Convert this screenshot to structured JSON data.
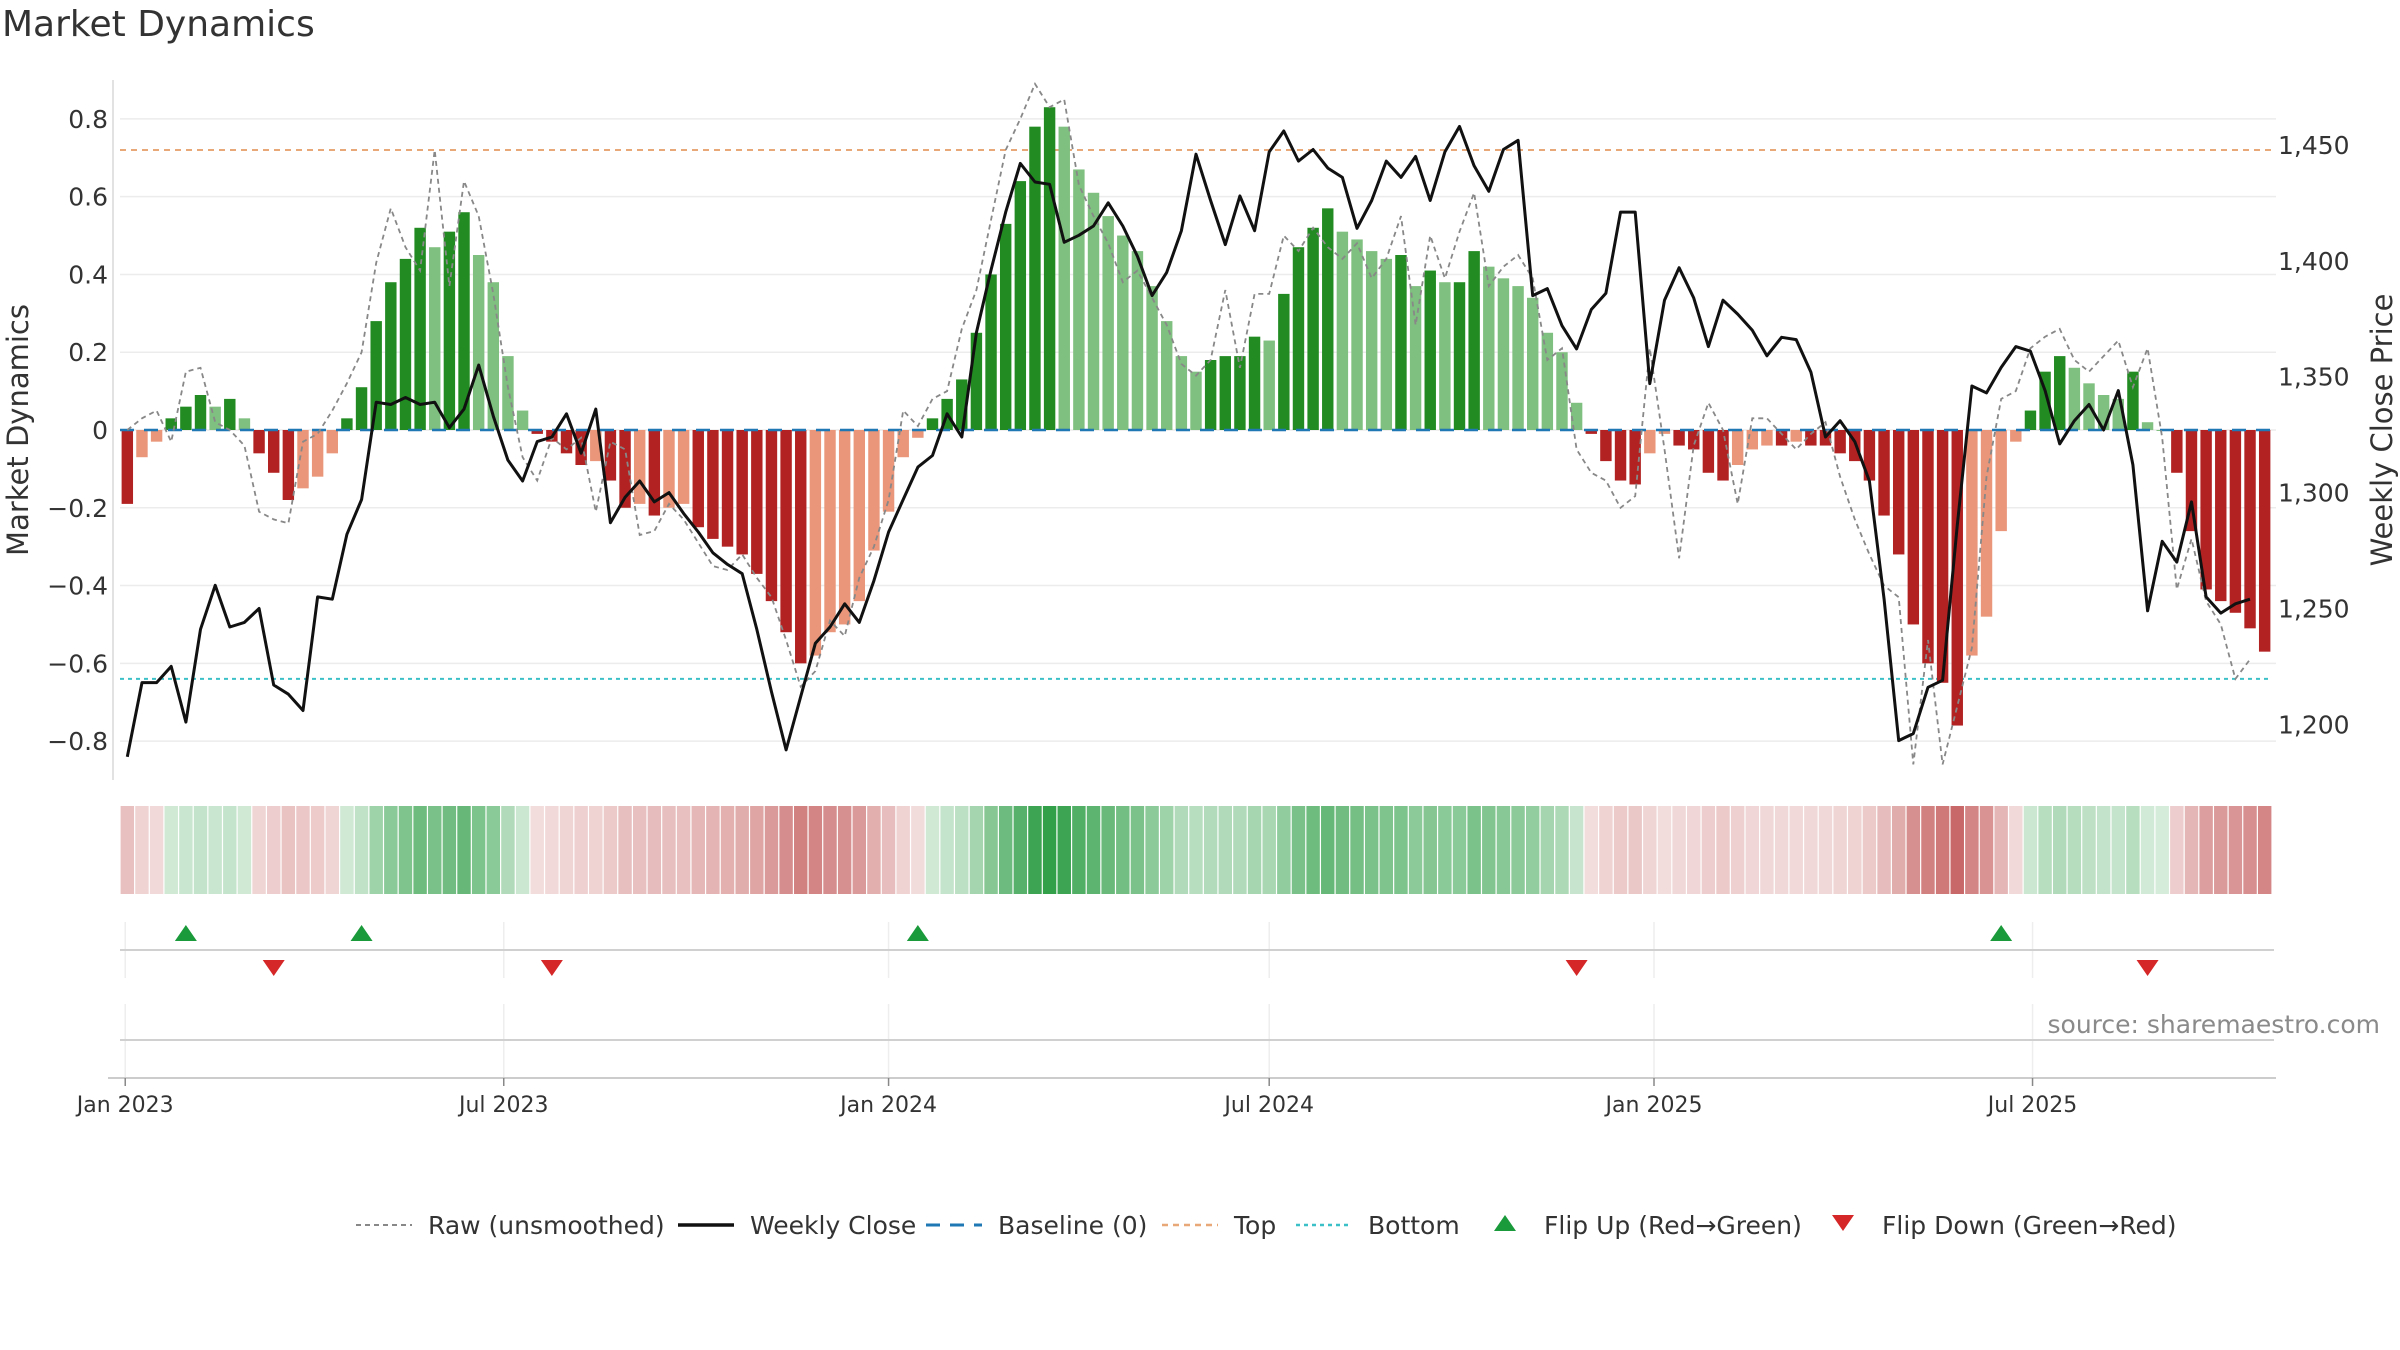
{
  "title": "Market Dynamics",
  "source": "source: sharemaestro.com",
  "colors": {
    "strong_green": "#228b22",
    "light_green": "#7fbf7f",
    "strong_red": "#b22222",
    "light_red": "#e9967a",
    "close_line": "#111111",
    "raw_line": "#888888",
    "baseline": "#1f77b4",
    "top_line": "#e8a878",
    "bottom_line": "#3cc0c8",
    "flip_up": "#1a9a3a",
    "flip_down": "#d62728"
  },
  "chart_data": {
    "type": "bar",
    "title": "Market Dynamics",
    "ylabel": "Market Dynamics",
    "y2label": "Weekly Close Price",
    "ylim": [
      -0.9,
      0.9
    ],
    "y2lim": [
      1176.0,
      1478.0
    ],
    "yticks": [
      "0.8",
      "0.6",
      "0.4",
      "0.2",
      "0",
      "−0.2",
      "−0.4",
      "−0.6",
      "−0.8"
    ],
    "y2ticks": [
      "1,450",
      "1,400",
      "1,350",
      "1,300",
      "1,250",
      "1,200"
    ],
    "xticks": [
      "Jan 2023",
      "Jul 2023",
      "Jan 2024",
      "Jul 2024",
      "Jan 2025",
      "Jul 2025"
    ],
    "x_start": "2023-01-02",
    "interval": "weekly",
    "top_level": 0.72,
    "bottom_level": -0.64,
    "grid": true,
    "legend_position": "bottom",
    "legend": [
      "Raw (unsmoothed)",
      "Weekly Close",
      "Baseline (0)",
      "Top",
      "Bottom",
      "Flip Up (Red→Green)",
      "Flip Down (Green→Red)"
    ],
    "smoothed": [
      -0.19,
      -0.07,
      -0.03,
      0.03,
      0.06,
      0.09,
      0.06,
      0.08,
      0.03,
      -0.06,
      -0.11,
      -0.18,
      -0.15,
      -0.12,
      -0.06,
      0.03,
      0.11,
      0.28,
      0.38,
      0.44,
      0.52,
      0.47,
      0.51,
      0.56,
      0.45,
      0.38,
      0.19,
      0.05,
      -0.01,
      -0.03,
      -0.06,
      -0.09,
      -0.08,
      -0.13,
      -0.2,
      -0.19,
      -0.22,
      -0.2,
      -0.19,
      -0.25,
      -0.28,
      -0.3,
      -0.32,
      -0.37,
      -0.44,
      -0.52,
      -0.6,
      -0.58,
      -0.52,
      -0.5,
      -0.44,
      -0.31,
      -0.21,
      -0.07,
      -0.02,
      0.03,
      0.08,
      0.13,
      0.25,
      0.4,
      0.53,
      0.64,
      0.78,
      0.83,
      0.78,
      0.67,
      0.61,
      0.55,
      0.5,
      0.46,
      0.37,
      0.28,
      0.19,
      0.15,
      0.18,
      0.19,
      0.19,
      0.24,
      0.23,
      0.35,
      0.47,
      0.52,
      0.57,
      0.51,
      0.49,
      0.46,
      0.44,
      0.45,
      0.37,
      0.41,
      0.38,
      0.38,
      0.46,
      0.42,
      0.39,
      0.37,
      0.34,
      0.25,
      0.2,
      0.07,
      -0.01,
      -0.08,
      -0.13,
      -0.14,
      -0.06,
      -0.01,
      -0.04,
      -0.05,
      -0.11,
      -0.13,
      -0.09,
      -0.05,
      -0.04,
      -0.04,
      -0.03,
      -0.04,
      -0.04,
      -0.06,
      -0.08,
      -0.13,
      -0.22,
      -0.32,
      -0.5,
      -0.6,
      -0.65,
      -0.76,
      -0.58,
      -0.48,
      -0.26,
      -0.03,
      0.05,
      0.15,
      0.19,
      0.16,
      0.12,
      0.09,
      0.08,
      0.15,
      0.02,
      0.0,
      -0.11,
      -0.26,
      -0.41,
      -0.44,
      -0.47,
      -0.51,
      -0.57
    ],
    "raw": [
      0.0,
      0.03,
      0.05,
      -0.03,
      0.15,
      0.16,
      0.02,
      0.0,
      -0.04,
      -0.21,
      -0.23,
      -0.24,
      -0.03,
      -0.01,
      0.05,
      0.12,
      0.2,
      0.43,
      0.57,
      0.47,
      0.41,
      0.72,
      0.37,
      0.64,
      0.55,
      0.35,
      0.11,
      -0.07,
      -0.13,
      -0.02,
      -0.05,
      -0.02,
      -0.21,
      -0.03,
      -0.05,
      -0.27,
      -0.26,
      -0.19,
      -0.23,
      -0.29,
      -0.35,
      -0.36,
      -0.32,
      -0.38,
      -0.43,
      -0.54,
      -0.66,
      -0.62,
      -0.49,
      -0.53,
      -0.38,
      -0.3,
      -0.18,
      0.05,
      0.01,
      0.08,
      0.1,
      0.26,
      0.36,
      0.54,
      0.72,
      0.8,
      0.89,
      0.83,
      0.85,
      0.63,
      0.55,
      0.48,
      0.38,
      0.41,
      0.34,
      0.27,
      0.17,
      0.14,
      0.18,
      0.36,
      0.16,
      0.35,
      0.35,
      0.5,
      0.46,
      0.52,
      0.47,
      0.44,
      0.48,
      0.39,
      0.44,
      0.55,
      0.27,
      0.5,
      0.39,
      0.51,
      0.61,
      0.37,
      0.42,
      0.45,
      0.39,
      0.18,
      0.21,
      -0.05,
      -0.11,
      -0.13,
      -0.2,
      -0.17,
      0.21,
      -0.05,
      -0.33,
      -0.04,
      0.07,
      0.0,
      -0.19,
      0.03,
      0.03,
      -0.01,
      -0.05,
      -0.01,
      0.02,
      -0.12,
      -0.23,
      -0.32,
      -0.4,
      -0.43,
      -0.86,
      -0.54,
      -0.86,
      -0.71,
      -0.56,
      -0.12,
      0.08,
      0.1,
      0.21,
      0.24,
      0.26,
      0.18,
      0.15,
      0.19,
      0.23,
      0.11,
      0.21,
      -0.02,
      -0.41,
      -0.28,
      -0.44,
      -0.5,
      -0.64,
      -0.59
    ]
  },
  "close_series": {
    "values": [
      1186.0,
      1218.0,
      1218.0,
      1225.0,
      1201.0,
      1241.0,
      1260.0,
      1242.0,
      1244.0,
      1250.0,
      1217.0,
      1213.0,
      1206.0,
      1255.0,
      1254.0,
      1282.0,
      1297.0,
      1339.0,
      1338.0,
      1341.0,
      1338.0,
      1339.0,
      1328.0,
      1336.0,
      1355.0,
      1333.0,
      1314.0,
      1305.0,
      1322.0,
      1324.0,
      1334.0,
      1317.0,
      1336.0,
      1287.0,
      1298.0,
      1305.0,
      1296.0,
      1300.0,
      1291.0,
      1283.0,
      1274.0,
      1269.0,
      1265.0,
      1241.0,
      1214.0,
      1189.0,
      1212.0,
      1235.0,
      1242.0,
      1252.0,
      1244.0,
      1262.0,
      1283.0,
      1297.0,
      1311.0,
      1316.0,
      1334.0,
      1324.0,
      1369.0,
      1396.0,
      1421.0,
      1442.0,
      1434.0,
      1433.0,
      1408.0,
      1411.0,
      1415.0,
      1425.0,
      1415.0,
      1402.0,
      1385.0,
      1395.0,
      1413.0,
      1446.0,
      1426.0,
      1407.0,
      1428.0,
      1413.0,
      1447.0,
      1456.0,
      1443.0,
      1448.0,
      1440.0,
      1436.0,
      1414.0,
      1426.0,
      1443.0,
      1436.0,
      1445.0,
      1426.0,
      1447.0,
      1458.0,
      1441.0,
      1430.0,
      1448.0,
      1452.0,
      1385.0,
      1388.0,
      1372.0,
      1362.0,
      1379.0,
      1386.0,
      1421.0,
      1421.0,
      1347.0,
      1383.0,
      1397.0,
      1384.0,
      1363.0,
      1383.0,
      1377.0,
      1370.0,
      1359.0,
      1367.0,
      1366.0,
      1352.0,
      1324.0,
      1331.0,
      1322.0,
      1305.0,
      1254.0,
      1193.0,
      1196.0,
      1216.0,
      1219.0,
      1286.0,
      1346.0,
      1343.0,
      1354.0,
      1363.0,
      1361.0,
      1344.0,
      1321.0,
      1331.0,
      1338.0,
      1327.0,
      1344.0,
      1312.0,
      1249.0,
      1279.0,
      1270.0,
      1296.0,
      1255.0,
      1248.0,
      1252.0,
      1254.0
    ]
  },
  "flips": {
    "up": [
      4,
      16,
      54,
      128
    ],
    "down": [
      10,
      29,
      99,
      138
    ]
  }
}
